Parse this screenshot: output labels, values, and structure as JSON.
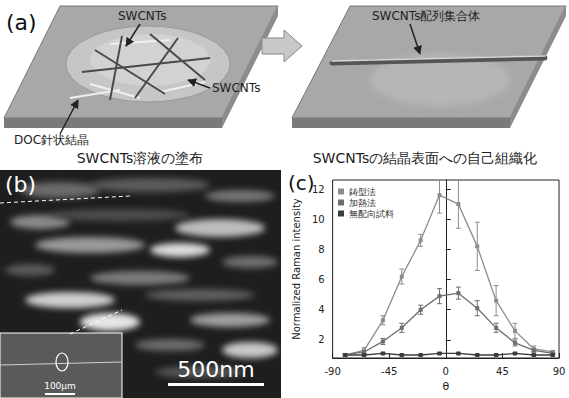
{
  "panel_a": {
    "panel_label": "(a)",
    "left": {
      "caption": "SWCNTs溶液の塗布",
      "labels": [
        "SWCNTs",
        "SWCNTs",
        "DOC針状結晶"
      ]
    },
    "right": {
      "caption": "SWCNTsの結晶表面への自己組織化",
      "labels": [
        "SWCNTs配列集合体"
      ]
    }
  },
  "panel_b": {
    "panel_label": "(b)",
    "scale_bar": "500nm",
    "inset_scale_bar": "100μm"
  },
  "chart_data": {
    "panel_label": "(c)",
    "type": "line",
    "x_label": "θ",
    "y_label": "Normalized Raman intensity",
    "x": [
      -80,
      -65,
      -50,
      -35,
      -20,
      -5,
      10,
      25,
      40,
      55,
      70,
      85
    ],
    "xlim": [
      -90,
      90
    ],
    "xticks": [
      -90,
      -45,
      0,
      45,
      90
    ],
    "ylim": [
      0.8,
      12.6
    ],
    "yticks": [
      2,
      4,
      6,
      8,
      10,
      12
    ],
    "grid": false,
    "legend": "upper left",
    "series": [
      {
        "name": "鋳型法",
        "color": "#8c8c8c",
        "marker": "square",
        "line_style": "solid",
        "values": [
          1.0,
          1.3,
          3.3,
          6.2,
          8.6,
          11.6,
          11.0,
          8.2,
          4.6,
          2.6,
          1.4,
          1.2
        ],
        "errors": [
          0.1,
          0.2,
          0.3,
          0.5,
          0.4,
          1.2,
          1.6,
          1.6,
          1.0,
          0.5,
          0.2,
          0.1
        ]
      },
      {
        "name": "加熱法",
        "color": "#6e6e6e",
        "marker": "square",
        "line_style": "solid",
        "values": [
          1.0,
          1.2,
          1.9,
          2.8,
          4.0,
          4.9,
          5.1,
          4.1,
          2.8,
          1.8,
          1.3,
          1.1
        ],
        "errors": [
          0.05,
          0.1,
          0.2,
          0.3,
          0.3,
          0.5,
          0.4,
          0.5,
          0.3,
          0.2,
          0.1,
          0.05
        ]
      },
      {
        "name": "無配向試料",
        "color": "#3c3c3c",
        "marker": "square",
        "line_style": "solid",
        "values": [
          1.0,
          1.0,
          1.1,
          1.0,
          1.0,
          1.1,
          1.1,
          1.0,
          1.0,
          1.1,
          1.0,
          1.0
        ],
        "errors": [
          0.05,
          0.05,
          0.05,
          0.05,
          0.05,
          0.05,
          0.05,
          0.05,
          0.05,
          0.05,
          0.05,
          0.05
        ]
      }
    ]
  }
}
